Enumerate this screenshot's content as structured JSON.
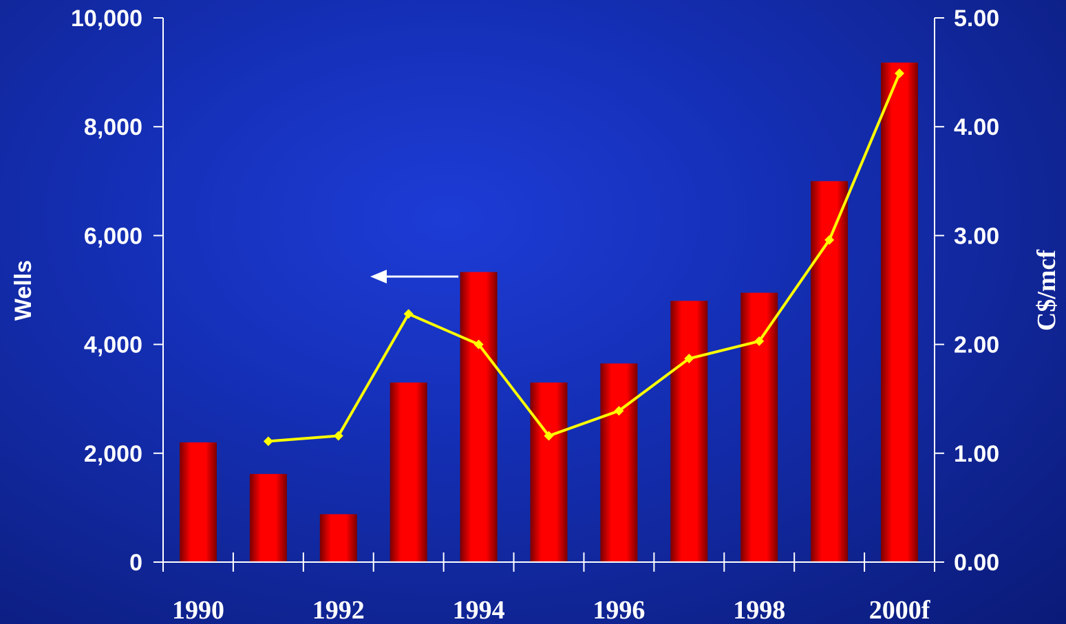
{
  "chart_data": {
    "type": "bar",
    "categories": [
      "1990",
      "1991",
      "1992",
      "1993",
      "1994",
      "1995",
      "1996",
      "1997",
      "1998",
      "1999",
      "2000f"
    ],
    "x_tick_labels": [
      "1990",
      "1992",
      "1994",
      "1996",
      "1998",
      "2000f"
    ],
    "series": [
      {
        "type": "bar",
        "axis": "left",
        "values": [
          2200,
          1620,
          880,
          3300,
          5330,
          3300,
          3650,
          4800,
          4950,
          7000,
          9180
        ]
      },
      {
        "type": "line",
        "axis": "right",
        "values": [
          null,
          1.11,
          1.16,
          2.28,
          2.0,
          1.16,
          1.39,
          1.87,
          2.03,
          2.96,
          4.49
        ]
      }
    ],
    "ylabel": "Wells",
    "y2label": "C$/mcf",
    "ylim": [
      0,
      10000
    ],
    "y2lim": [
      0,
      5
    ],
    "y_ticks": [
      "0",
      "2,000",
      "4,000",
      "6,000",
      "8,000",
      "10,000"
    ],
    "y2_ticks": [
      "0.00",
      "1.00",
      "2.00",
      "3.00",
      "4.00",
      "5.00"
    ],
    "annotation": {
      "type": "arrow",
      "points_to": "left",
      "meaning": "bars refer to left axis (Wells)"
    },
    "grid": false,
    "legend": "none",
    "colors": {
      "bar_main": "#ff0000",
      "bar_dark": "#7a0000",
      "line": "#ffff00",
      "axis": "#ffffff",
      "background": "#1530b8"
    }
  }
}
